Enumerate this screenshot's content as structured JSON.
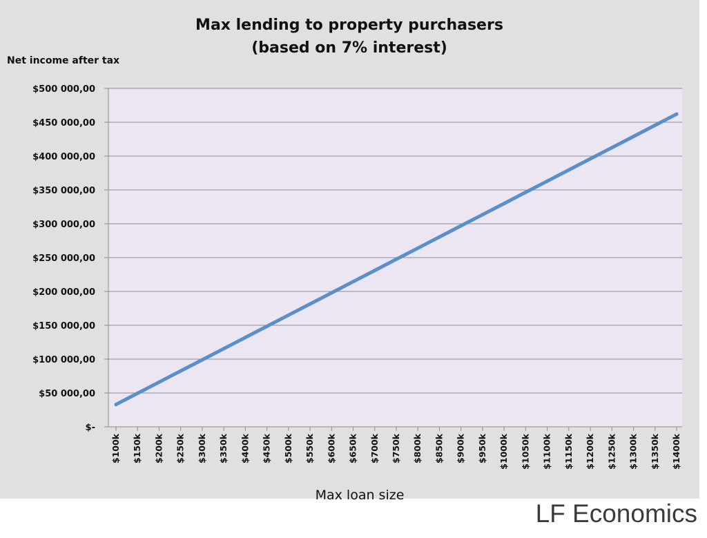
{
  "chart_data": {
    "type": "line",
    "title_line1": "Max lending to property purchasers",
    "title_line2": "(based on 7% interest)",
    "ylabel": "Net income after tax",
    "xlabel": "Max loan size",
    "categories": [
      "$100k",
      "$150k",
      "$200k",
      "$250k",
      "$300k",
      "$350k",
      "$400k",
      "$450k",
      "$500k",
      "$550k",
      "$600k",
      "$650k",
      "$700k",
      "$750k",
      "$800k",
      "$850k",
      "$900k",
      "$950k",
      "$1000k",
      "$1050k",
      "$1100k",
      "$1150k",
      "$1200k",
      "$1250k",
      "$1300k",
      "$1350k",
      "$1400k"
    ],
    "y_ticks": [
      "$-",
      "$50 000,00",
      "$100 000,00",
      "$150 000,00",
      "$200 000,00",
      "$250 000,00",
      "$300 000,00",
      "$350 000,00",
      "$400 000,00",
      "$450 000,00",
      "$500 000,00"
    ],
    "ylim": [
      0,
      500000
    ],
    "grid": true,
    "series": [
      {
        "color": "#5b8fca",
        "values": [
          33000,
          49500,
          66000,
          82500,
          99000,
          115500,
          132000,
          148500,
          165000,
          181500,
          198000,
          214500,
          231000,
          247500,
          264000,
          280500,
          297000,
          313500,
          330000,
          346500,
          363000,
          379500,
          396000,
          412500,
          429000,
          445500,
          462000
        ]
      }
    ],
    "plot_background": "#ece6f3",
    "outer_background": "#e0e0e0"
  },
  "watermark": "LF Economics"
}
